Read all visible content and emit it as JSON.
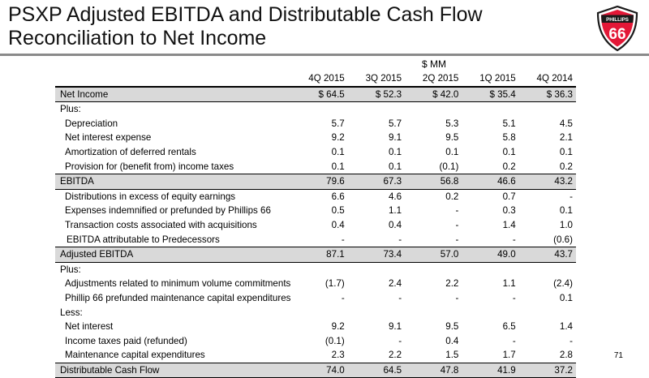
{
  "title_line1": "PSXP Adjusted EBITDA and Distributable Cash Flow",
  "title_line2": "Reconciliation to Net Income",
  "logo": {
    "icon": "phillips-66-shield-logo",
    "text_top": "PHILLIPS",
    "text_big": "66",
    "color": "#e31837"
  },
  "unit": "$ MM",
  "columns": [
    "4Q 2015",
    "3Q 2015",
    "2Q 2015",
    "1Q 2015",
    "4Q 2014"
  ],
  "rows": [
    {
      "label": "Net Income",
      "values": [
        "$ 64.5",
        "$ 52.3",
        "$ 42.0",
        "$ 35.4",
        "$ 36.3"
      ]
    },
    {
      "label": "Plus:",
      "values": []
    },
    {
      "label": "Depreciation",
      "values": [
        "5.7",
        "5.7",
        "5.3",
        "5.1",
        "4.5"
      ]
    },
    {
      "label": "Net interest expense",
      "values": [
        "9.2",
        "9.1",
        "9.5",
        "5.8",
        "2.1"
      ]
    },
    {
      "label": "Amortization of deferred rentals",
      "values": [
        "0.1",
        "0.1",
        "0.1",
        "0.1",
        "0.1"
      ]
    },
    {
      "label": "Provision for (benefit from) income taxes",
      "values": [
        "0.1",
        "0.1",
        "(0.1)",
        "0.2",
        "0.2"
      ]
    },
    {
      "label": "EBITDA",
      "values": [
        "79.6",
        "67.3",
        "56.8",
        "46.6",
        "43.2"
      ]
    },
    {
      "label": "Distributions in excess of equity earnings",
      "values": [
        "6.6",
        "4.6",
        "0.2",
        "0.7",
        "-"
      ]
    },
    {
      "label": "Expenses indemnified or prefunded by Phillips 66",
      "values": [
        "0.5",
        "1.1",
        "-",
        "0.3",
        "0.1"
      ]
    },
    {
      "label": "Transaction costs associated with acquisitions",
      "values": [
        "0.4",
        "0.4",
        "-",
        "1.4",
        "1.0"
      ]
    },
    {
      "label": "EBITDA attributable to Predecessors",
      "values": [
        "-",
        "-",
        "-",
        "-",
        "(0.6)"
      ]
    },
    {
      "label": "Adjusted EBITDA",
      "values": [
        "87.1",
        "73.4",
        "57.0",
        "49.0",
        "43.7"
      ]
    },
    {
      "label": "Plus:",
      "values": []
    },
    {
      "label": "Adjustments related to minimum volume commitments",
      "values": [
        "(1.7)",
        "2.4",
        "2.2",
        "1.1",
        "(2.4)"
      ]
    },
    {
      "label": "Phillip 66 prefunded maintenance capital expenditures",
      "values": [
        "-",
        "-",
        "-",
        "-",
        "0.1"
      ]
    },
    {
      "label": "Less:",
      "values": []
    },
    {
      "label": "Net interest",
      "values": [
        "9.2",
        "9.1",
        "9.5",
        "6.5",
        "1.4"
      ]
    },
    {
      "label": "Income taxes paid (refunded)",
      "values": [
        "(0.1)",
        "-",
        "0.4",
        "-",
        "-"
      ]
    },
    {
      "label": "Maintenance capital expenditures",
      "values": [
        "2.3",
        "2.2",
        "1.5",
        "1.7",
        "2.8"
      ]
    },
    {
      "label": "Distributable Cash Flow",
      "values": [
        "74.0",
        "64.5",
        "47.8",
        "41.9",
        "37.2"
      ]
    }
  ],
  "page_number": "71"
}
